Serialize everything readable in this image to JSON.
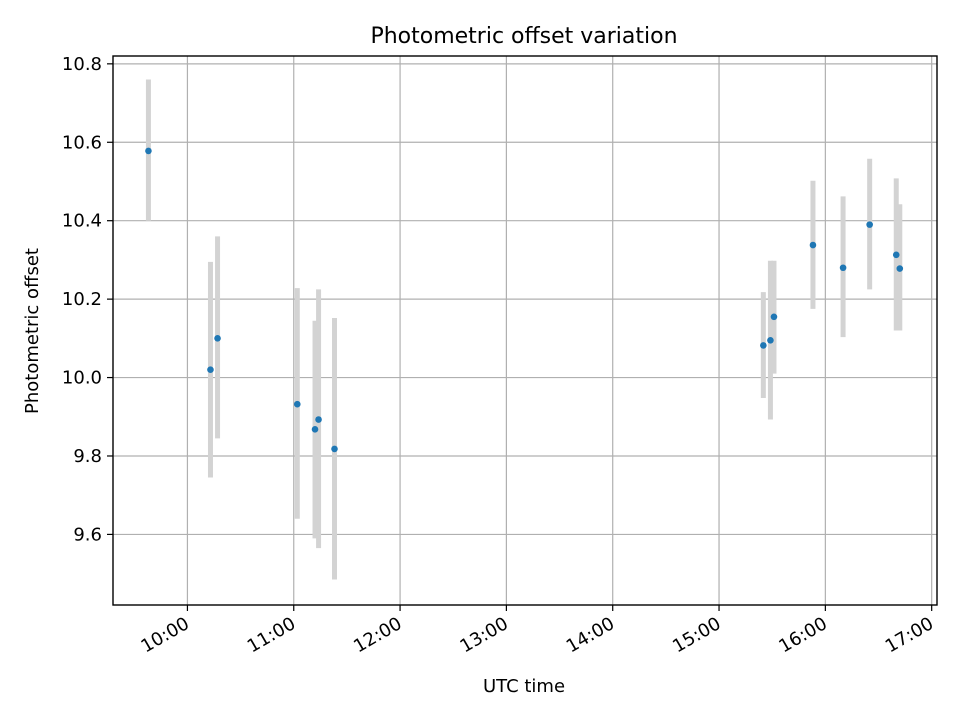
{
  "chart_data": {
    "type": "scatter",
    "title": "Photometric offset variation",
    "xlabel": "UTC time",
    "ylabel": "Photometric offset",
    "xlim": [
      "09:18",
      "17:03"
    ],
    "ylim": [
      9.42,
      10.82
    ],
    "x_ticks": [
      "10:00",
      "11:00",
      "12:00",
      "13:00",
      "14:00",
      "15:00",
      "16:00",
      "17:00"
    ],
    "y_ticks": [
      "9.6",
      "9.8",
      "10.0",
      "10.2",
      "10.4",
      "10.6",
      "10.8"
    ],
    "grid": true,
    "marker_color": "#1f77b4",
    "errorbar_color": "#d3d3d3",
    "points": [
      {
        "x": "09:38",
        "y": 10.578,
        "ylow": 10.4,
        "yhigh": 10.76
      },
      {
        "x": "10:13",
        "y": 10.02,
        "ylow": 9.745,
        "yhigh": 10.295
      },
      {
        "x": "10:17",
        "y": 10.1,
        "ylow": 9.845,
        "yhigh": 10.36
      },
      {
        "x": "11:02",
        "y": 9.932,
        "ylow": 9.64,
        "yhigh": 10.228
      },
      {
        "x": "11:12",
        "y": 9.868,
        "ylow": 9.59,
        "yhigh": 10.145
      },
      {
        "x": "11:14",
        "y": 9.893,
        "ylow": 9.565,
        "yhigh": 10.225
      },
      {
        "x": "11:23",
        "y": 9.818,
        "ylow": 9.485,
        "yhigh": 10.152
      },
      {
        "x": "15:25",
        "y": 10.082,
        "ylow": 9.948,
        "yhigh": 10.218
      },
      {
        "x": "15:29",
        "y": 10.095,
        "ylow": 9.893,
        "yhigh": 10.298
      },
      {
        "x": "15:31",
        "y": 10.155,
        "ylow": 10.01,
        "yhigh": 10.298
      },
      {
        "x": "15:53",
        "y": 10.338,
        "ylow": 10.175,
        "yhigh": 10.502
      },
      {
        "x": "16:10",
        "y": 10.28,
        "ylow": 10.103,
        "yhigh": 10.462
      },
      {
        "x": "16:25",
        "y": 10.39,
        "ylow": 10.225,
        "yhigh": 10.558
      },
      {
        "x": "16:40",
        "y": 10.313,
        "ylow": 10.12,
        "yhigh": 10.508
      },
      {
        "x": "16:42",
        "y": 10.278,
        "ylow": 10.12,
        "yhigh": 10.442
      }
    ]
  }
}
